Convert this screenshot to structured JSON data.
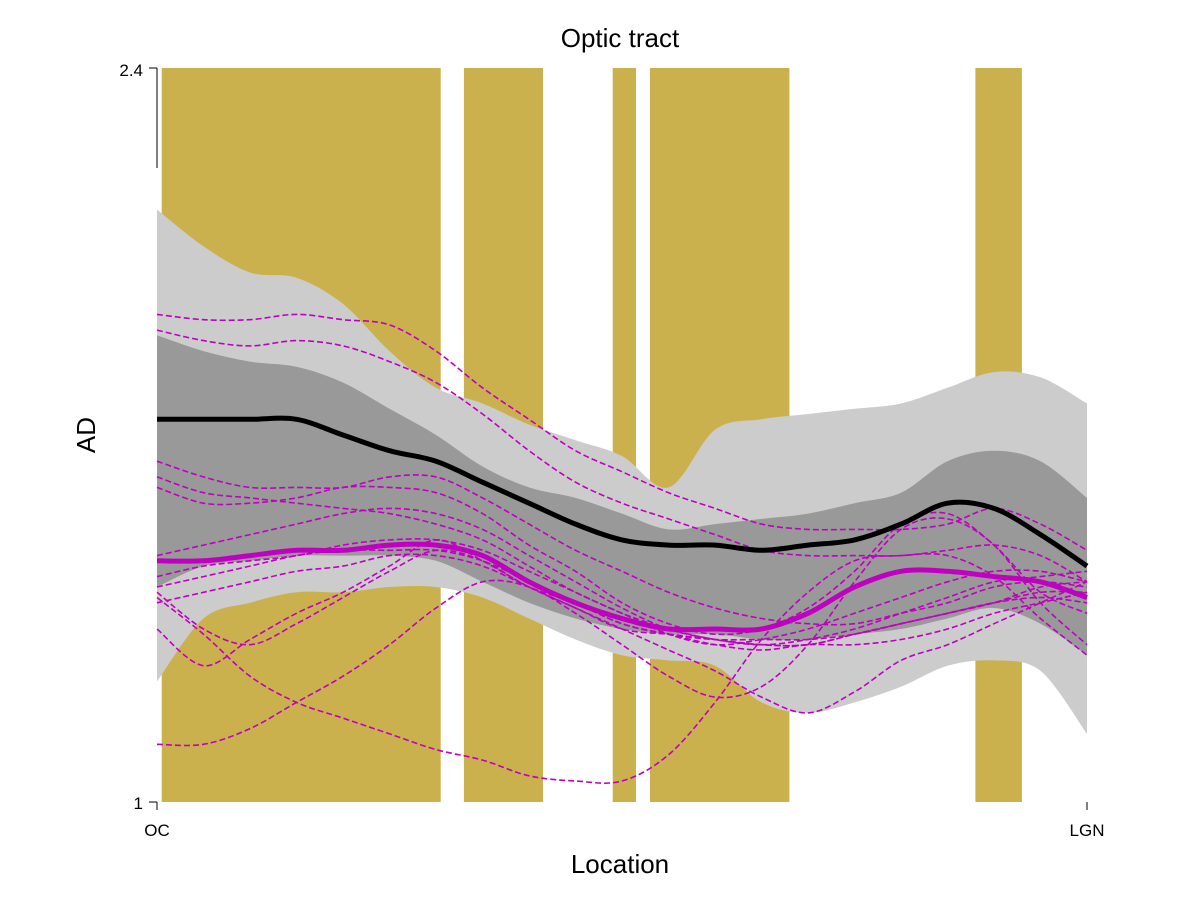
{
  "chart_data": {
    "type": "line",
    "title": "Optic tract",
    "xlabel": "Location",
    "ylabel": "AD",
    "x_tick_labels": [
      "OC",
      "LGN"
    ],
    "y_ticks": [
      1,
      2.4
    ],
    "y_tick_labels": [
      "1",
      "2.4"
    ],
    "xlim": [
      0,
      100
    ],
    "ylim": [
      1,
      2.4
    ],
    "grid": false,
    "colors": {
      "significance": "#CBB14E",
      "outer_band": "#CCCCCC",
      "inner_band": "#999999",
      "mean": "#000000",
      "patients": "#C000C0"
    },
    "x": [
      0,
      5,
      10,
      15,
      20,
      25,
      30,
      35,
      40,
      45,
      50,
      55,
      60,
      65,
      70,
      75,
      80,
      85,
      90,
      95,
      100
    ],
    "significance_intervals": [
      [
        0.5,
        30.5
      ],
      [
        33,
        41.5
      ],
      [
        49,
        51.5
      ],
      [
        53,
        68
      ],
      [
        88,
        93
      ]
    ],
    "bands": {
      "outer_upper": [
        2.13,
        2.06,
        2.01,
        2.0,
        1.95,
        1.86,
        1.79,
        1.76,
        1.72,
        1.69,
        1.66,
        1.6,
        1.71,
        1.73,
        1.74,
        1.75,
        1.76,
        1.79,
        1.82,
        1.81,
        1.76
      ],
      "inner_upper": [
        1.89,
        1.86,
        1.84,
        1.83,
        1.8,
        1.75,
        1.7,
        1.64,
        1.6,
        1.58,
        1.55,
        1.52,
        1.53,
        1.54,
        1.55,
        1.57,
        1.59,
        1.65,
        1.67,
        1.65,
        1.58
      ],
      "inner_lower": [
        1.41,
        1.45,
        1.46,
        1.47,
        1.47,
        1.47,
        1.46,
        1.42,
        1.38,
        1.35,
        1.33,
        1.32,
        1.32,
        1.31,
        1.31,
        1.32,
        1.33,
        1.35,
        1.37,
        1.34,
        1.28
      ],
      "outer_lower": [
        1.23,
        1.35,
        1.38,
        1.4,
        1.4,
        1.41,
        1.41,
        1.39,
        1.35,
        1.31,
        1.28,
        1.27,
        1.26,
        1.19,
        1.17,
        1.19,
        1.22,
        1.26,
        1.27,
        1.25,
        1.13
      ]
    },
    "mean": [
      1.73,
      1.73,
      1.73,
      1.73,
      1.7,
      1.67,
      1.65,
      1.61,
      1.57,
      1.53,
      1.5,
      1.49,
      1.49,
      1.48,
      1.49,
      1.5,
      1.53,
      1.57,
      1.56,
      1.51,
      1.45
    ],
    "patient_mean": [
      1.46,
      1.46,
      1.47,
      1.48,
      1.48,
      1.49,
      1.49,
      1.47,
      1.42,
      1.38,
      1.35,
      1.33,
      1.33,
      1.33,
      1.36,
      1.41,
      1.44,
      1.44,
      1.43,
      1.42,
      1.39
    ],
    "patient_curves": [
      [
        1.93,
        1.92,
        1.92,
        1.93,
        1.92,
        1.91,
        1.86,
        1.79,
        1.73,
        1.67,
        1.63,
        1.59,
        1.56,
        1.53,
        1.52,
        1.52,
        1.52,
        1.53,
        1.56,
        1.53,
        1.48
      ],
      [
        1.9,
        1.88,
        1.87,
        1.88,
        1.87,
        1.84,
        1.8,
        1.74,
        1.67,
        1.61,
        1.57,
        1.54,
        1.51,
        1.48,
        1.47,
        1.47,
        1.47,
        1.48,
        1.49,
        1.47,
        1.42
      ],
      [
        1.65,
        1.62,
        1.6,
        1.6,
        1.6,
        1.62,
        1.62,
        1.58,
        1.53,
        1.48,
        1.44,
        1.4,
        1.37,
        1.35,
        1.34,
        1.34,
        1.36,
        1.38,
        1.41,
        1.42,
        1.41
      ],
      [
        1.62,
        1.59,
        1.58,
        1.57,
        1.56,
        1.55,
        1.53,
        1.5,
        1.45,
        1.4,
        1.36,
        1.32,
        1.3,
        1.31,
        1.33,
        1.36,
        1.39,
        1.42,
        1.44,
        1.44,
        1.42
      ],
      [
        1.6,
        1.57,
        1.57,
        1.58,
        1.6,
        1.6,
        1.59,
        1.55,
        1.49,
        1.44,
        1.38,
        1.34,
        1.32,
        1.33,
        1.37,
        1.44,
        1.53,
        1.55,
        1.49,
        1.4,
        1.36
      ],
      [
        1.47,
        1.49,
        1.51,
        1.53,
        1.55,
        1.56,
        1.55,
        1.52,
        1.47,
        1.42,
        1.37,
        1.33,
        1.31,
        1.3,
        1.31,
        1.33,
        1.36,
        1.39,
        1.42,
        1.43,
        1.44
      ],
      [
        1.43,
        1.45,
        1.46,
        1.47,
        1.49,
        1.5,
        1.5,
        1.48,
        1.44,
        1.4,
        1.36,
        1.33,
        1.31,
        1.3,
        1.3,
        1.32,
        1.34,
        1.36,
        1.38,
        1.39,
        1.38
      ],
      [
        1.41,
        1.43,
        1.45,
        1.47,
        1.48,
        1.48,
        1.48,
        1.46,
        1.42,
        1.38,
        1.34,
        1.32,
        1.31,
        1.31,
        1.31,
        1.32,
        1.34,
        1.36,
        1.38,
        1.4,
        1.4
      ],
      [
        1.38,
        1.4,
        1.42,
        1.44,
        1.45,
        1.47,
        1.47,
        1.45,
        1.41,
        1.37,
        1.33,
        1.32,
        1.31,
        1.3,
        1.3,
        1.32,
        1.34,
        1.36,
        1.38,
        1.41,
        1.42
      ],
      [
        1.4,
        1.33,
        1.3,
        1.34,
        1.39,
        1.44,
        1.48,
        1.46,
        1.41,
        1.38,
        1.34,
        1.32,
        1.3,
        1.29,
        1.3,
        1.3,
        1.31,
        1.33,
        1.36,
        1.38,
        1.4
      ],
      [
        1.33,
        1.26,
        1.31,
        1.36,
        1.4,
        1.45,
        1.5,
        1.46,
        1.41,
        1.37,
        1.33,
        1.29,
        1.25,
        1.2,
        1.17,
        1.21,
        1.27,
        1.3,
        1.34,
        1.38,
        1.42
      ],
      [
        1.39,
        1.32,
        1.24,
        1.19,
        1.16,
        1.13,
        1.1,
        1.08,
        1.05,
        1.04,
        1.04,
        1.09,
        1.19,
        1.31,
        1.4,
        1.46,
        1.47,
        1.47,
        1.43,
        1.35,
        1.28
      ],
      [
        1.11,
        1.11,
        1.14,
        1.19,
        1.24,
        1.3,
        1.37,
        1.42,
        1.41,
        1.36,
        1.3,
        1.24,
        1.2,
        1.22,
        1.3,
        1.42,
        1.52,
        1.54,
        1.49,
        1.38,
        1.3
      ]
    ]
  }
}
